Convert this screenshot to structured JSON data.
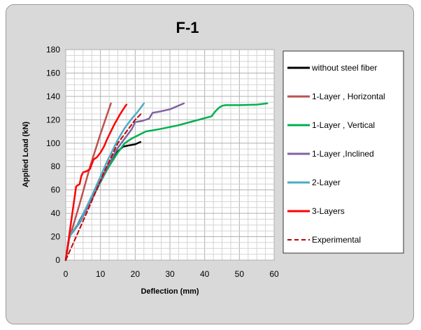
{
  "chart_data": {
    "type": "line",
    "title": "F-1",
    "xlabel": "Deflection (mm)",
    "ylabel": "Applied Load (kN)",
    "xlim": [
      0,
      60
    ],
    "ylim": [
      0,
      180
    ],
    "xticks": [
      0,
      10,
      20,
      30,
      40,
      50,
      60
    ],
    "yticks": [
      0,
      20,
      40,
      60,
      80,
      100,
      120,
      140,
      160,
      180
    ],
    "grid": true,
    "legend_position": "right",
    "series": [
      {
        "name": "without steel fiber",
        "color": "#000000",
        "dash": false,
        "x": [
          0,
          1,
          3,
          6,
          9,
          12,
          15,
          16.5,
          18,
          20,
          21.5
        ],
        "y": [
          0,
          20,
          28,
          45,
          62,
          78,
          93,
          97,
          98,
          99,
          101
        ]
      },
      {
        "name": "1-Layer , Horizontal",
        "color": "#c0504d",
        "dash": false,
        "x": [
          0,
          1,
          4,
          7,
          10,
          13
        ],
        "y": [
          0,
          18,
          48,
          80,
          108,
          134
        ]
      },
      {
        "name": "1-Layer , Vertical",
        "color": "#00b050",
        "dash": false,
        "x": [
          0,
          1,
          4,
          8,
          12,
          15,
          17,
          19,
          21,
          23,
          27,
          32,
          37,
          42,
          43,
          44,
          45,
          46,
          50,
          55,
          58
        ],
        "y": [
          0,
          20,
          32,
          55,
          78,
          92,
          100,
          104,
          107,
          110,
          112,
          115,
          119,
          123,
          127,
          130,
          132,
          132.5,
          132.5,
          133,
          134
        ]
      },
      {
        "name": "1-Layer ,Inclined",
        "color": "#8064a2",
        "dash": false,
        "x": [
          0,
          1,
          4,
          8,
          12,
          15,
          17,
          19,
          20,
          22,
          24,
          25,
          27,
          30,
          34
        ],
        "y": [
          0,
          20,
          32,
          55,
          80,
          96,
          104,
          112,
          118,
          119,
          121,
          126,
          127,
          129,
          134
        ]
      },
      {
        "name": "2-Layer",
        "color": "#4bacc6",
        "dash": false,
        "x": [
          0,
          1,
          4,
          8,
          12,
          15,
          17,
          19,
          20.5,
          22.5
        ],
        "y": [
          0,
          20,
          33,
          58,
          85,
          103,
          113,
          121,
          126,
          134
        ]
      },
      {
        "name": "3-Layers",
        "color": "#ff0000",
        "dash": false,
        "x": [
          0,
          1.5,
          3,
          4,
          4.5,
          5,
          6,
          7,
          8,
          9,
          10,
          11,
          12,
          14,
          15.5,
          17,
          17.5
        ],
        "y": [
          0,
          32,
          63,
          65,
          72,
          75,
          76,
          78,
          86,
          88,
          92,
          97,
          104,
          116,
          124,
          131,
          133
        ]
      },
      {
        "name": "Experimental",
        "color": "#c00000",
        "dash": true,
        "x": [
          0,
          3,
          7,
          11,
          15,
          18,
          20,
          22
        ],
        "y": [
          0,
          20,
          47,
          75,
          100,
          112,
          120,
          126
        ]
      }
    ]
  }
}
